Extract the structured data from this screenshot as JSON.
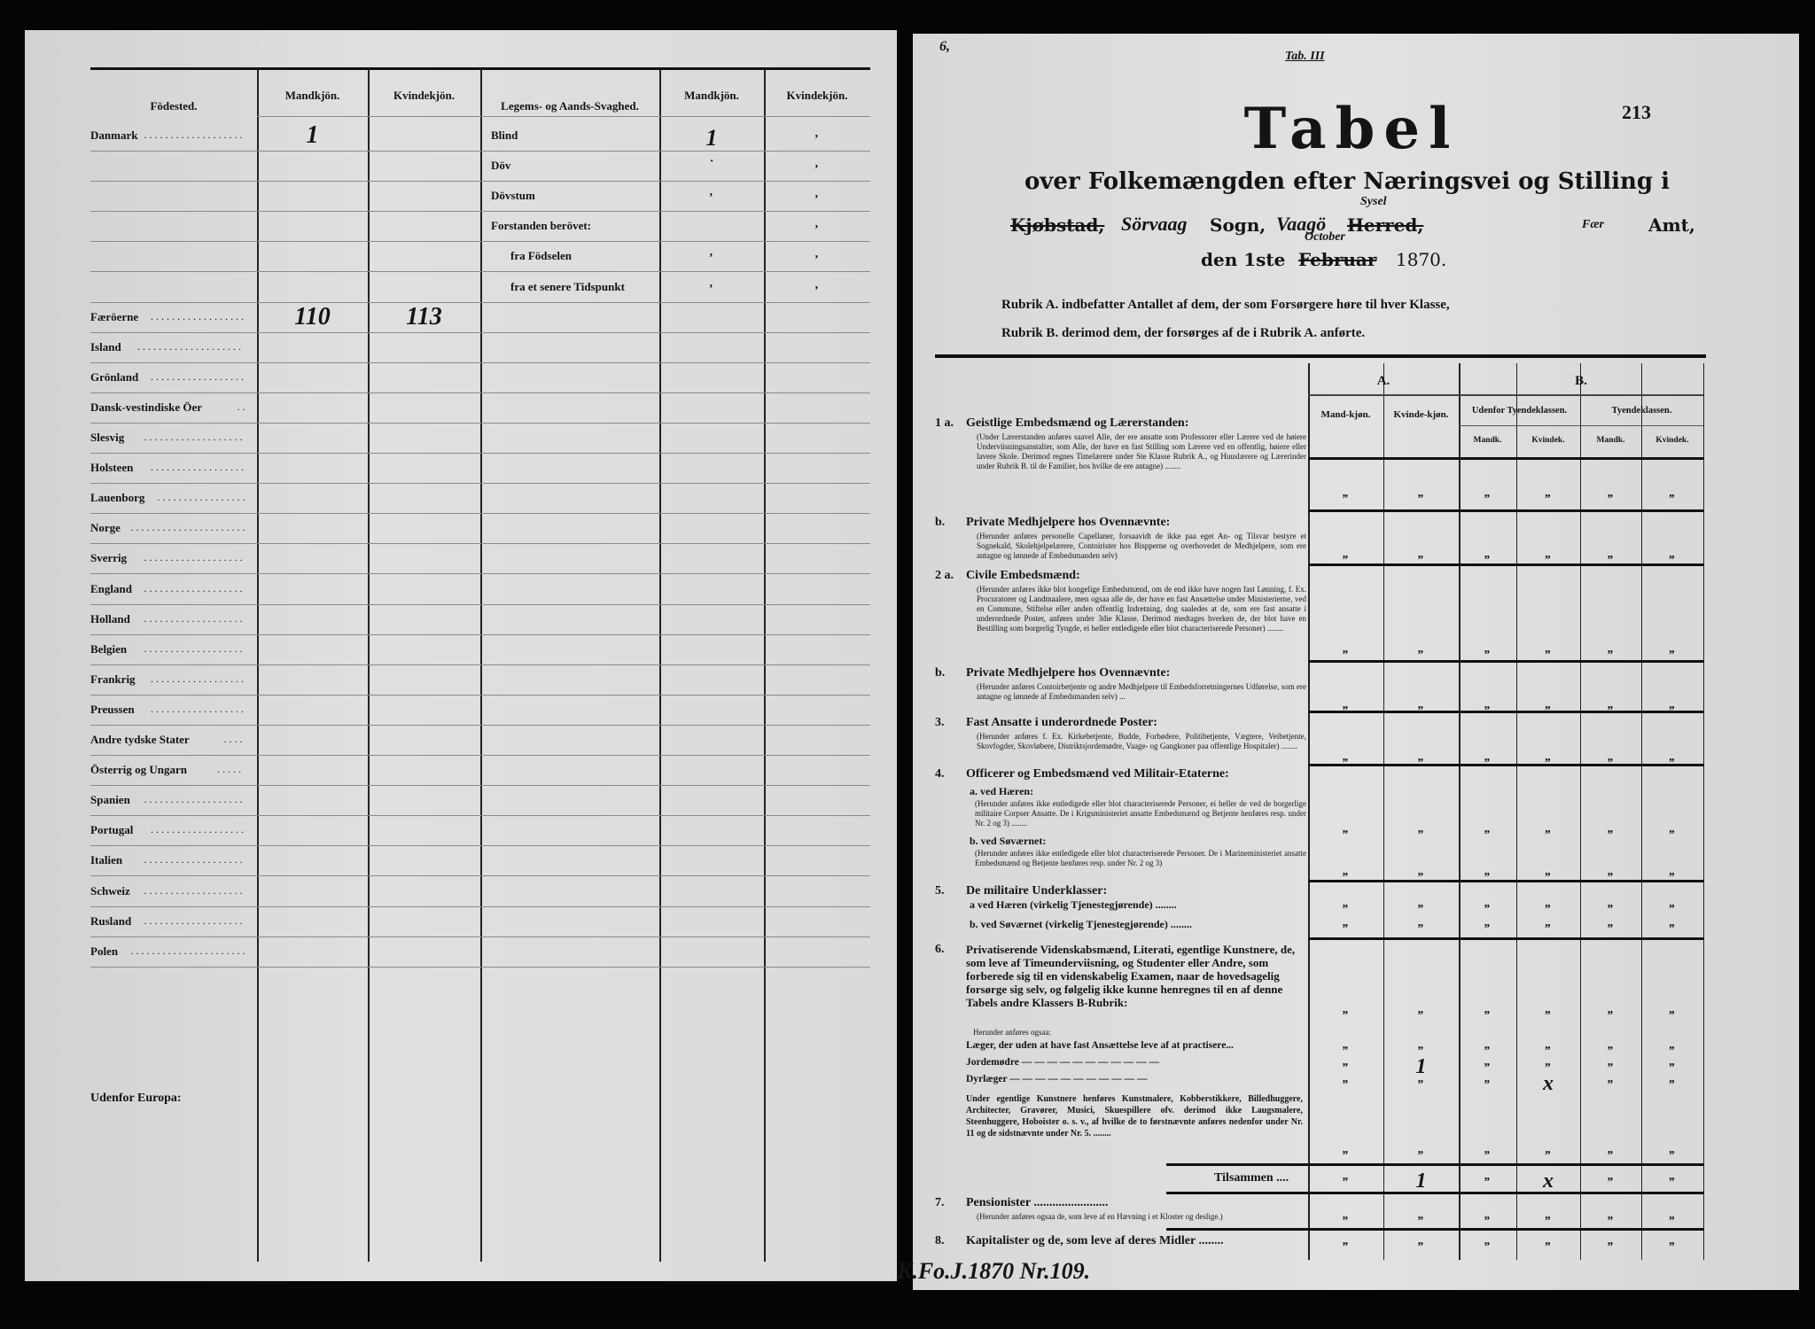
{
  "left_page": {
    "headers": {
      "birthplace": "Födested.",
      "male": "Mandkjön.",
      "female": "Kvindekjön.",
      "infirmity": "Legems- og Aands-Svaghed.",
      "male2": "Mandkjön.",
      "female2": "Kvindekjön."
    },
    "rows": [
      {
        "place": "Danmark",
        "male": "1",
        "female": "",
        "infirmity": "Blind",
        "male2": "1",
        "female2": "‚"
      },
      {
        "place": "",
        "male": "",
        "female": "",
        "infirmity": "Döv",
        "male2": "·",
        "female2": "‚"
      },
      {
        "place": "",
        "male": "",
        "female": "",
        "infirmity": "Dövstum",
        "male2": "‚",
        "female2": "‚"
      },
      {
        "place": "",
        "male": "",
        "female": "",
        "infirmity": "Forstanden berövet:",
        "male2": "",
        "female2": "‚"
      },
      {
        "place": "",
        "male": "",
        "female": "",
        "infirmity": "fra Födselen",
        "male2": "‚",
        "female2": "‚"
      },
      {
        "place": "",
        "male": "",
        "female": "",
        "infirmity": "fra et senere Tidspunkt",
        "male2": "‚",
        "female2": "‚"
      },
      {
        "place": "Færöerne",
        "male": "110",
        "female": "113"
      },
      {
        "place": "Island"
      },
      {
        "place": "Grönland"
      },
      {
        "place": "Dansk-vestindiske Öer"
      },
      {
        "place": "Slesvig"
      },
      {
        "place": "Holsteen"
      },
      {
        "place": "Lauenborg"
      },
      {
        "place": "Norge"
      },
      {
        "place": "Sverrig"
      },
      {
        "place": "England"
      },
      {
        "place": "Holland"
      },
      {
        "place": "Belgien"
      },
      {
        "place": "Frankrig"
      },
      {
        "place": "Preussen"
      },
      {
        "place": "Andre tydske Stater"
      },
      {
        "place": "Österrig og Ungarn"
      },
      {
        "place": "Spanien"
      },
      {
        "place": "Portugal"
      },
      {
        "place": "Italien"
      },
      {
        "place": "Schweiz"
      },
      {
        "place": "Rusland"
      },
      {
        "place": "Polen"
      }
    ],
    "outside_europe": "Udenfor Europa:"
  },
  "right_page": {
    "corner_note": "6,",
    "top_note": "Tab. III",
    "title": "Tabel",
    "page_number": "213",
    "subtitle": "over Folkemængden efter Næringsvei og Stilling i",
    "location": {
      "kjobstad": "Kjøbstad,",
      "parish_hand": "Sörvaag",
      "parish": "Sogn,",
      "district_hand": "Vaagö",
      "herred_hand": "Sysel",
      "herred": "Herred,",
      "amt_hand": "Fær",
      "amt": "Amt,"
    },
    "date": {
      "prefix": "den 1ste",
      "month_struck": "Februar",
      "month_hand": "October",
      "year": "1870."
    },
    "rubrik_a": "Rubrik A. indbefatter Antallet af dem, der som Forsørgere høre til hver Klasse,",
    "rubrik_b": "Rubrik B. derimod dem, der forsørges af de i Rubrik A. anførte.",
    "table_headers": {
      "a": "A.",
      "b": "B.",
      "a_male": "Mand-kjøn.",
      "a_female": "Kvinde-kjøn.",
      "b_outside": "Udenfor Tyendeklassen.",
      "b_servants": "Tyendeklassen.",
      "mandk": "Mandk.",
      "kvindek": "Kvindek."
    },
    "sections": [
      {
        "num": "1 a.",
        "title": "Geistlige Embedsmænd og Lærerstanden:",
        "note": "(Under Lærerstanden anføres saavel Alle, der ere ansatte som Professorer eller Lærere ved de høiere Underviisningsanstalter, som Alle, der have en fast Stilling som Lærere ved en offentlig, høiere eller lavere Skole. Derimod regnes Timelærere under Ste Klasse Rubrik A., og Huuslærere og Lærerinder under Rubrik B. til de Familier, hos hvilke de ere antagne) ........",
        "values": [
          "„",
          "„",
          "„",
          "„",
          "„",
          "„"
        ]
      },
      {
        "num": "b.",
        "title": "Private Medhjelpere hos Ovennævnte:",
        "note": "(Herunder anføres personelle Capellaner, forsaavidt de ikke paa eget An- og Tilsvar bestyre et Sognekald, Skolehjelpelærere, Contoirister hos Bispperne og overhovedet de Medhjelpere, som ere antagne og lønnede af Embedsmanden selv)",
        "values": [
          "„",
          "„",
          "„",
          "„",
          "„",
          "„"
        ]
      },
      {
        "num": "2 a.",
        "title": "Civile Embedsmænd:",
        "note": "(Herunder anføres ikke blot kongelige Embedsmænd, om de end ikke have nogen fast Lønning, f. Ex. Procuratorer og Landmaalere, men ogsaa alle de, der have en fast Ansættelse under Ministerierne, ved en Commune, Stiftelse eller anden offentlig Indretning, dog saaledes at de, som ere fast ansatte i underordnede Poster, anføres under 3die Klasse. Derimod medtages hverken de, der blot have en Bestilling som borgerlig Tyngde, ei heller entledigede eller blot characteriserede Personer) ........",
        "values": [
          "„",
          "„",
          "„",
          "„",
          "„",
          "„"
        ]
      },
      {
        "num": "b.",
        "title": "Private Medhjelpere hos Ovennævnte:",
        "note": "(Herunder anføres Contoirbetjente og andre Medhjelpere til Embedsforretningernes Udførelse, som ere antagne og lønnede af Embedsmanden selv) ...",
        "values": [
          "„",
          "„",
          "„",
          "„",
          "„",
          "„"
        ]
      },
      {
        "num": "3.",
        "title": "Fast Ansatte i underordnede Poster:",
        "note": "(Herunder anføres f. Ex. Kirkebetjente, Budde, Forbødere, Politibetjente, Vægtere, Veibetjente, Skovfogder, Skovløbere, Distriktsjordemødre, Vaage- og Gangkoner paa offentlige Hospitaler) ........",
        "values": [
          "„",
          "„",
          "„",
          "„",
          "„",
          "„"
        ]
      },
      {
        "num": "4.",
        "title": "Officerer og Embedsmænd ved Militair-Etaterne:",
        "sub": [
          {
            "label": "a. ved Hæren:",
            "note": "(Herunder anføres ikke entledigede eller blot characteriserede Personer, ei heller de ved de borgerlige militaire Corpser Ansatte. De i Krigsministeriet ansatte Embedsmænd og Betjente henføres resp. under Nr. 2 og 3) ........",
            "values": [
              "„",
              "„",
              "„",
              "„",
              "„",
              "„"
            ]
          },
          {
            "label": "b. ved Søværnet:",
            "note": "(Herunder anføres ikke entledigede eller blot characteriserede Personer. De i Marineministeriet ansatte Embedsmænd og Betjente henføres resp. under Nr. 2 og 3)",
            "values": [
              "„",
              "„",
              "„",
              "„",
              "„",
              "„"
            ]
          }
        ]
      },
      {
        "num": "5.",
        "title": "De militaire Underklasser:",
        "sub": [
          {
            "label": "a ved Hæren (virkelig Tjenestegjørende) ........",
            "values": [
              "„",
              "„",
              "„",
              "„",
              "„",
              "„"
            ]
          },
          {
            "label": "b. ved Søværnet (virkelig Tjenestegjørende) ........",
            "values": [
              "„",
              "„",
              "„",
              "„",
              "„",
              "„"
            ]
          }
        ]
      },
      {
        "num": "6.",
        "title": "Privatiserende Videnskabsmænd, Literati, egentlige Kunstnere, de, som leve af Timeunderviisning, og Studenter eller Andre, som forberede sig til en videnskabelig Examen, naar de hovedsagelig forsørge sig selv, og følgelig ikke kunne henregnes til en af denne Tabels andre Klassers B-Rubrik:",
        "values": [
          "„",
          "„",
          "„",
          "„",
          "„",
          "„"
        ],
        "herunder": "Herunder anføres ogsaa:",
        "sub": [
          {
            "label": "Læger, der uden at have fast Ansættelse leve af at practisere...",
            "values": [
              "„",
              "„",
              "„",
              "„",
              "„",
              "„"
            ]
          },
          {
            "label": "Jordemødre — — — — — — — — — — —",
            "values": [
              "„",
              "1",
              "„",
              "„",
              "„",
              "„"
            ]
          },
          {
            "label": "Dyrlæger — — — — — — — — — — —",
            "values": [
              "„",
              "„",
              "„",
              "x",
              "„",
              "„"
            ]
          }
        ],
        "note": "Under egentlige Kunstnere henføres Kunstmalere, Kobberstikkere, Billedhuggere, Architecter, Gravører, Musici, Skuespillere ofv. derimod ikke Laugsmalere, Steenhuggere, Hoboister o. s. v., af hvilke de to førstnævnte anføres nedenfor under Nr. 11 og de sidstnævnte under Nr. 5. ........",
        "note_values": [
          "„",
          "„",
          "„",
          "„",
          "„",
          "„"
        ]
      },
      {
        "total": "Tilsammen ....",
        "values": [
          "„",
          "1",
          "„",
          "x",
          "„",
          "„"
        ]
      },
      {
        "num": "7.",
        "title": "Pensionister ........................",
        "note": "(Herunder anføres ogsaa de, som leve af en Hævning i et Kloster og deslige.)",
        "values": [
          "„",
          "„",
          "„",
          "„",
          "„",
          "„"
        ]
      },
      {
        "num": "8.",
        "title": "Kapitalister og de, som leve af deres Midler ........",
        "values": [
          "„",
          "„",
          "„",
          "„",
          "„",
          "„"
        ]
      }
    ],
    "archive_note": "K.Fo.J.1870 Nr.109."
  }
}
